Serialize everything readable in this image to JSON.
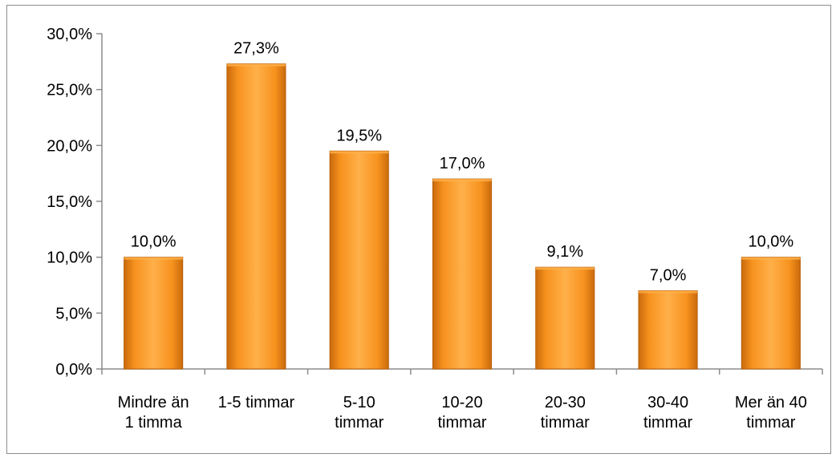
{
  "chart_data": {
    "type": "bar",
    "categories": [
      [
        "Mindre än",
        "1 timma"
      ],
      [
        "1-5 timmar"
      ],
      [
        "5-10",
        "timmar"
      ],
      [
        "10-20",
        "timmar"
      ],
      [
        "20-30",
        "timmar"
      ],
      [
        "30-40",
        "timmar"
      ],
      [
        "Mer än 40",
        "timmar"
      ]
    ],
    "values": [
      10.0,
      27.3,
      19.5,
      17.0,
      9.1,
      7.0,
      10.0
    ],
    "data_labels": [
      "10,0%",
      "27,3%",
      "19,5%",
      "17,0%",
      "9,1%",
      "7,0%",
      "10,0%"
    ],
    "y_ticks": [
      0,
      5,
      10,
      15,
      20,
      25,
      30
    ],
    "y_tick_labels": [
      "0,0%",
      "5,0%",
      "10,0%",
      "15,0%",
      "20,0%",
      "25,0%",
      "30,0%"
    ],
    "ylim": [
      0,
      30
    ],
    "title": "",
    "xlabel": "",
    "ylabel": "",
    "grid": false,
    "legend": "none",
    "colors": {
      "bar_fill_light": "#ffb04a",
      "bar_fill_mid": "#f7921e",
      "bar_fill_dark": "#c96a0c",
      "bar_edge": "#b85e08",
      "axis": "#8c8c8c"
    }
  }
}
